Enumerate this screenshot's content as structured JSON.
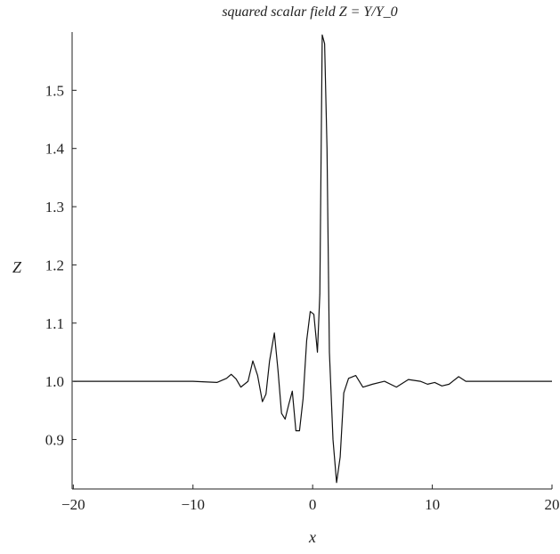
{
  "chart_data": {
    "type": "line",
    "title": "squared scalar field Z = Y/Y_0",
    "xlabel": "x",
    "ylabel": "Z",
    "xlim": [
      -20.1,
      20
    ],
    "ylim": [
      0.815,
      1.6
    ],
    "xticks": [
      -20,
      -10,
      0,
      10,
      20
    ],
    "xtick_labels": [
      "−20",
      "−10",
      "0",
      "10",
      "20"
    ],
    "yticks": [
      0.9,
      1.0,
      1.1,
      1.2,
      1.3,
      1.4,
      1.5
    ],
    "ytick_labels": [
      "0.9",
      "1.0",
      "1.1",
      "1.2",
      "1.3",
      "1.4",
      "1.5"
    ],
    "grid": false,
    "colors": {
      "line": "#111111",
      "axis": "#222222",
      "text": "#222222"
    },
    "series": [
      {
        "x": [
          -20,
          -15,
          -10,
          -8,
          -7.2,
          -6.8,
          -6.4,
          -6.0,
          -5.4,
          -5.0,
          -4.6,
          -4.2,
          -3.9,
          -3.6,
          -3.2,
          -2.9,
          -2.6,
          -2.3,
          -2.0,
          -1.7,
          -1.4,
          -1.1,
          -0.8,
          -0.5,
          -0.2,
          0.1,
          0.4,
          0.6,
          0.8,
          1.0,
          1.2,
          1.4,
          1.7,
          2.0,
          2.3,
          2.6,
          3.0,
          3.6,
          4.2,
          5.0,
          6.0,
          7.0,
          8.0,
          9.0,
          9.6,
          10.2,
          10.8,
          11.4,
          12.2,
          12.8,
          13.4,
          14.0,
          15.0,
          17.0,
          20
        ],
        "y": [
          1.0,
          1.0,
          1.0,
          0.998,
          1.005,
          1.012,
          1.004,
          0.99,
          1.0,
          1.035,
          1.01,
          0.965,
          0.978,
          1.035,
          1.083,
          1.02,
          0.945,
          0.935,
          0.96,
          0.983,
          0.915,
          0.915,
          0.97,
          1.07,
          1.12,
          1.115,
          1.05,
          1.15,
          1.595,
          1.58,
          1.4,
          1.05,
          0.9,
          0.826,
          0.87,
          0.98,
          1.005,
          1.01,
          0.99,
          0.995,
          1.0,
          0.99,
          1.003,
          1.0,
          0.995,
          0.998,
          0.992,
          0.995,
          1.008,
          1.0,
          1.0,
          1.0,
          1.0,
          1.0,
          1.0
        ]
      }
    ]
  }
}
